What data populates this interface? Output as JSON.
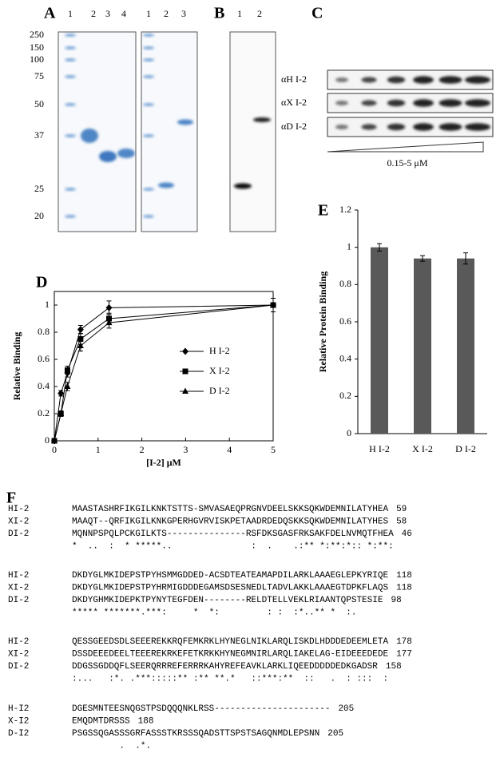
{
  "panel_labels": [
    "A",
    "B",
    "C",
    "D",
    "E",
    "F"
  ],
  "gel_a": {
    "lanes_left": [
      "1",
      "2",
      "3",
      "4"
    ],
    "lanes_right": [
      "1",
      "2",
      "3"
    ],
    "markers": [
      "250",
      "150",
      "100",
      "75",
      "50",
      "37",
      "25",
      "20"
    ]
  },
  "gel_b": {
    "lanes": [
      "1",
      "2"
    ]
  },
  "blot_c": {
    "rows": [
      "αH I-2",
      "αX I-2",
      "αD I-2"
    ],
    "gradient_label": "0.15-5 μM"
  },
  "chart_data": [
    {
      "type": "line",
      "x": [
        0,
        0.15,
        0.3,
        0.6,
        1.25,
        5
      ],
      "series": [
        {
          "name": "H I-2",
          "marker": "diamond",
          "color": "#000000",
          "values": [
            0,
            0.35,
            0.5,
            0.82,
            0.98,
            1.0
          ],
          "errors": [
            0.01,
            0.02,
            0.03,
            0.03,
            0.05,
            0.05
          ]
        },
        {
          "name": "X I-2",
          "marker": "square",
          "color": "#000000",
          "values": [
            0,
            0.2,
            0.52,
            0.75,
            0.9,
            1.0
          ],
          "errors": [
            0.01,
            0.02,
            0.03,
            0.04,
            0.04,
            0.05
          ]
        },
        {
          "name": "D I-2",
          "marker": "triangle",
          "color": "#000000",
          "values": [
            0,
            0.2,
            0.4,
            0.7,
            0.87,
            1.0
          ],
          "errors": [
            0.01,
            0.02,
            0.03,
            0.04,
            0.04,
            0.05
          ]
        }
      ],
      "xlim": [
        0,
        5
      ],
      "xticks": [
        0,
        1,
        2,
        3,
        4,
        5
      ],
      "ylim": [
        0,
        1.1
      ],
      "yticks": [
        0,
        0.2,
        0.4,
        0.6,
        0.8,
        1
      ],
      "xlabel": "[I-2] μM",
      "ylabel": "Relative Binding"
    },
    {
      "type": "bar",
      "categories": [
        "H I-2",
        "X I-2",
        "D I-2"
      ],
      "values": [
        1.0,
        0.94,
        0.94
      ],
      "errors": [
        0.02,
        0.015,
        0.03
      ],
      "color": "#595959",
      "ylim": [
        0,
        1.2
      ],
      "yticks": [
        0,
        0.2,
        0.4,
        0.6,
        0.8,
        1,
        1.2
      ],
      "ylabel": "Relative Protein Binding"
    }
  ],
  "alignment": {
    "blocks": [
      {
        "rows": [
          {
            "name": "HI-2",
            "sequence": "MAASTASHRFIKGILKNKTSTTS-SMVASAEQPRGNVDEELSKKSQKWDEMNILATYHEA",
            "end": "59"
          },
          {
            "name": "XI-2",
            "sequence": "MAAQT--QRFIKGILKNKGPERHGVRVISKPETAADRDEDQSKKSQKWDEMNILATYHES",
            "end": "58"
          },
          {
            "name": "DI-2",
            "sequence": "MQNNPSPQLPCKGILKTS---------------RSFDKSGASFRKSAKFDELNVMQTFHEA",
            "end": "46"
          }
        ],
        "consensus": "*  ..  :  * *****..               :  .    .:** *:**:*:: *:**:"
      },
      {
        "rows": [
          {
            "name": "HI-2",
            "sequence": "DKDYGLMKIDEPSTPYHSMMGDDED-ACSDTEATEAMAPDILARKLAAAEGLEPKYRIQE",
            "end": "118"
          },
          {
            "name": "XI-2",
            "sequence": "DKDYGLMKIDEPSTPYHRMIGDDDEGAMSDSESNEDLTADVLAKKLAAAEGTDPKFLAQS",
            "end": "118"
          },
          {
            "name": "DI-2",
            "sequence": "DKDYGHMKIDEPKTPYNYTEGFDEN--------RELDTELLVEKLRIAANTQPSTESIE",
            "end": "98"
          }
        ],
        "consensus": "***** *******.***:     *  *:         : :  :*..** *  :.  "
      },
      {
        "rows": [
          {
            "name": "HI-2",
            "sequence": "QESSGEEDSDLSEEEREKKRQFEMKRKLHYNEGLNIKLARQLISKDLHDDDEDEEMLETA",
            "end": "178"
          },
          {
            "name": "XI-2",
            "sequence": "DSSDEEEDEELTEEEREKRKEFETKRKKHYNEGMNIRLARQLIAKELAG-EIDEEEDEDE",
            "end": "177"
          },
          {
            "name": "DI-2",
            "sequence": "DDGSSGDDQFLSEERQRRREFERRRKAHYREFEAVKLARKLIQEEDDDDDEDKGADSR",
            "end": "158"
          }
        ],
        "consensus": ":...   :*. .***:::::** :** **.*   ::***:**  ::   .  : :::  :"
      },
      {
        "rows": [
          {
            "name": "H-I2",
            "sequence": "DGESMNTEESNQGSTPSDQQQNKLRSS----------------------",
            "end": "205"
          },
          {
            "name": "X-I2",
            "sequence": "EMQDMTDRSSS",
            "end": "188"
          },
          {
            "name": "D-I2",
            "sequence": "PSGSSQGASSSGRFASSSTKRSSSQADSTTSPSTSAGQNMDLEPSNN",
            "end": "205"
          }
        ],
        "consensus": "         .  .*."
      }
    ]
  }
}
